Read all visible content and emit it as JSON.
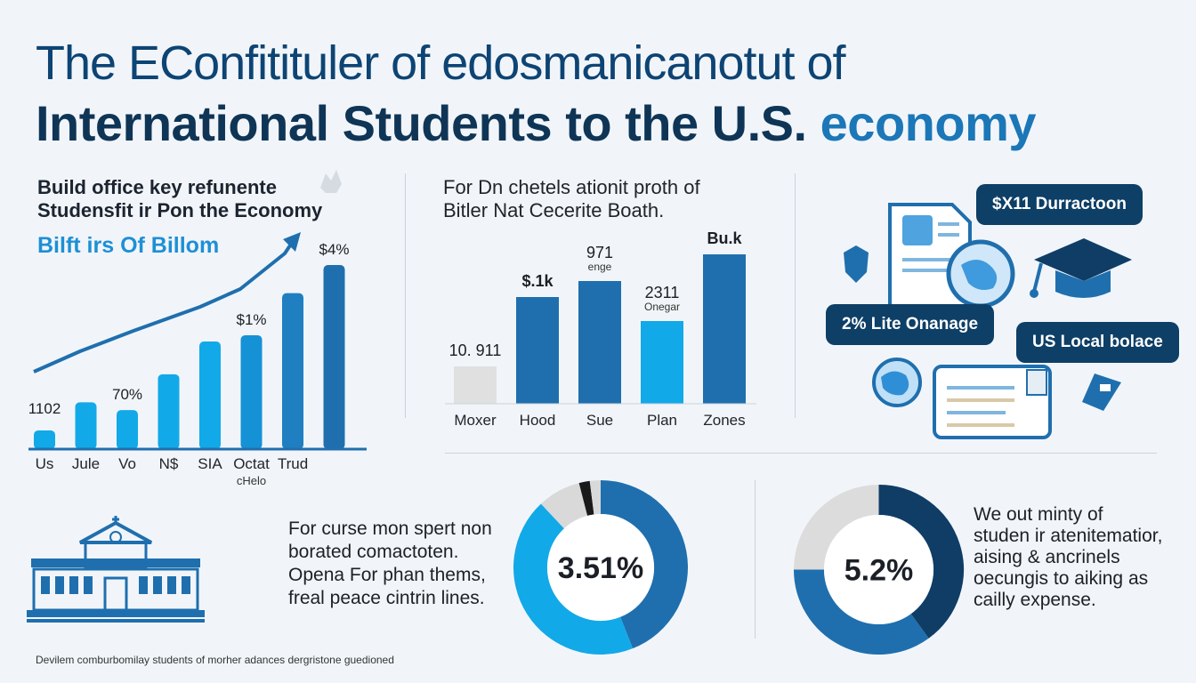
{
  "title": {
    "line1": "The EConfitituler of edosmanicanotut of",
    "line2_main": "International Students to the U.S.",
    "line2_accent": "economy"
  },
  "left_panel": {
    "heading_line1": "Build office key refunente",
    "heading_line2": "Studensfit ir Pon the Economy",
    "subtitle": "Bilft irs Of Billom"
  },
  "mid_panel": {
    "heading_line1": "For Dn chetels ationit proth of",
    "heading_line2": "Bitler Nat Cecerite Boath."
  },
  "right_panel": {
    "pill1": "$X11 Durractoon",
    "pill2": "2% Lite Onanage",
    "pill3": "US Local bolace"
  },
  "bottom": {
    "para_left": [
      "For curse mon spert non",
      "borated comactoten.",
      "Opena For phan thems,",
      "freal peace cintrin lines."
    ],
    "para_right": [
      "We out minty of",
      "studen ir atenitematior,",
      "aising & ancrinels",
      "oecungis to aiking as",
      "cailly expense."
    ],
    "footnote": "Devilem comburbomilay students of morher adances dergristone guedioned"
  },
  "colors": {
    "dark_navy": "#0f3556",
    "blue": "#1f6fae",
    "light_blue": "#12a9e8",
    "gray": "#e0e0e0"
  },
  "chart_data": [
    {
      "type": "bar",
      "title": "Bilft irs Of Billom",
      "categories": [
        "Us",
        "Jule",
        "Vo",
        "N$",
        "SIA",
        "Octat",
        "Trud",
        ""
      ],
      "category_sublabels": [
        "",
        "",
        "",
        "",
        "",
        "cHelo",
        "",
        ""
      ],
      "values": [
        1.2,
        3.0,
        2.5,
        4.8,
        6.9,
        7.3,
        10.0,
        11.8
      ],
      "data_labels": [
        "1102",
        "",
        "70%",
        "",
        "",
        "$1%",
        "",
        "$4%"
      ],
      "trend_arrow": true,
      "ylim": [
        0,
        13
      ]
    },
    {
      "type": "bar",
      "title": "For Dn chetels ationit proth of Bitler Nat Cecerite Boath.",
      "categories": [
        "Moxer",
        "Hood",
        "Sue",
        "Plan",
        "Zones"
      ],
      "values": [
        1.4,
        4.0,
        4.6,
        3.1,
        5.6
      ],
      "data_labels": [
        "10. 911",
        "$.1k",
        "971",
        "2311",
        "Bu.k"
      ],
      "data_sublabels": [
        "",
        "",
        "enge",
        "Onegar",
        ""
      ],
      "ylim": [
        0,
        7
      ]
    },
    {
      "type": "pie",
      "center_label": "3.51%",
      "slices": [
        {
          "value": 44,
          "color": "#1f6fae"
        },
        {
          "value": 44,
          "color": "#12a9e8"
        },
        {
          "value": 8,
          "color": "#d9d9d9"
        },
        {
          "value": 2,
          "color": "#1a1a1a"
        },
        {
          "value": 2,
          "color": "#d9d9d9"
        }
      ]
    },
    {
      "type": "pie",
      "center_label": "5.2%",
      "slices": [
        {
          "value": 40,
          "color": "#0f3d66"
        },
        {
          "value": 35,
          "color": "#1f6fae"
        },
        {
          "value": 25,
          "color": "#dcdcdc"
        }
      ]
    }
  ]
}
